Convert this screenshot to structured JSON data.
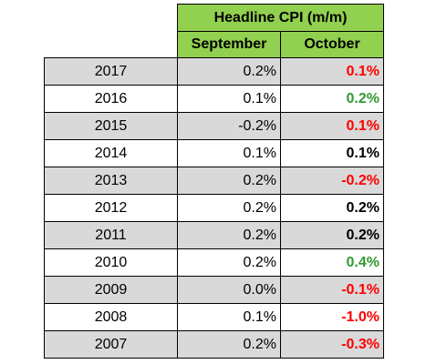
{
  "table": {
    "title": "Headline CPI (m/m)",
    "columns": [
      "September",
      "October"
    ],
    "rows": [
      {
        "year": "2017",
        "september": "0.2%",
        "october": "0.1%",
        "october_color": "#ff0000",
        "shade": "#d9d9d9"
      },
      {
        "year": "2016",
        "september": "0.1%",
        "october": "0.2%",
        "october_color": "#339933",
        "shade": "#ffffff"
      },
      {
        "year": "2015",
        "september": "-0.2%",
        "october": "0.1%",
        "october_color": "#ff0000",
        "shade": "#d9d9d9"
      },
      {
        "year": "2014",
        "september": "0.1%",
        "october": "0.1%",
        "october_color": "#000000",
        "shade": "#ffffff"
      },
      {
        "year": "2013",
        "september": "0.2%",
        "october": "-0.2%",
        "october_color": "#ff0000",
        "shade": "#d9d9d9"
      },
      {
        "year": "2012",
        "september": "0.2%",
        "october": "0.2%",
        "october_color": "#000000",
        "shade": "#ffffff"
      },
      {
        "year": "2011",
        "september": "0.2%",
        "october": "0.2%",
        "october_color": "#000000",
        "shade": "#d9d9d9"
      },
      {
        "year": "2010",
        "september": "0.2%",
        "october": "0.4%",
        "october_color": "#339933",
        "shade": "#ffffff"
      },
      {
        "year": "2009",
        "september": "0.0%",
        "october": "-0.1%",
        "october_color": "#ff0000",
        "shade": "#d9d9d9"
      },
      {
        "year": "2008",
        "september": "0.1%",
        "october": "-1.0%",
        "october_color": "#ff0000",
        "shade": "#ffffff"
      },
      {
        "year": "2007",
        "september": "0.2%",
        "october": "-0.3%",
        "october_color": "#ff0000",
        "shade": "#d9d9d9"
      }
    ]
  },
  "colors": {
    "header_green": "#92d050",
    "row_gray": "#d9d9d9",
    "negative_red": "#ff0000",
    "positive_green": "#339933"
  }
}
